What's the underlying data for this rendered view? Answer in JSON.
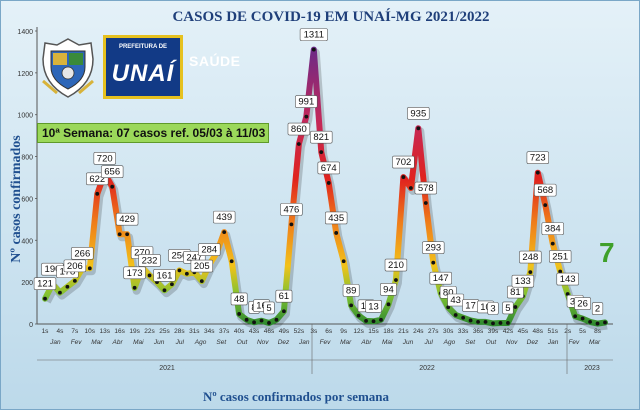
{
  "title": "CASOS DE COVID-19 EM UNAÍ-MG 2021/2022",
  "banner": "10ª Semana: 07 casos ref. 05/03 à 11/03",
  "logo": {
    "small_text": "PREFEITURA DE",
    "city": "UNAÍ",
    "department": "SAÚDE"
  },
  "last_value": "7",
  "chart_data": {
    "type": "line",
    "title": "CASOS DE COVID-19 EM UNAÍ-MG 2021/2022",
    "xlabel": "Nº casos confirmados por semana",
    "ylabel": "Nº casos confirmados",
    "ylim": [
      0,
      1400
    ],
    "yticks": [
      0,
      200,
      400,
      600,
      800,
      1000,
      1200,
      1400
    ],
    "grid": false,
    "values": [
      121,
      190,
      150,
      178,
      206,
      266,
      266,
      622,
      720,
      656,
      429,
      429,
      173,
      270,
      232,
      200,
      161,
      190,
      256,
      240,
      247,
      205,
      284,
      340,
      439,
      300,
      48,
      20,
      8,
      16,
      5,
      20,
      61,
      476,
      860,
      991,
      1311,
      821,
      674,
      435,
      300,
      89,
      40,
      15,
      13,
      20,
      94,
      210,
      702,
      650,
      935,
      578,
      293,
      147,
      80,
      43,
      30,
      17,
      10,
      10,
      3,
      5,
      5,
      81,
      133,
      248,
      723,
      568,
      384,
      251,
      143,
      37,
      26,
      10,
      2,
      7
    ],
    "data_labels": [
      {
        "i": 0,
        "text": "121"
      },
      {
        "i": 1,
        "text": "190"
      },
      {
        "i": 3,
        "text": "178"
      },
      {
        "i": 4,
        "text": "206"
      },
      {
        "i": 5,
        "text": "266"
      },
      {
        "i": 7,
        "text": "622"
      },
      {
        "i": 8,
        "text": "720"
      },
      {
        "i": 9,
        "text": "656"
      },
      {
        "i": 11,
        "text": "429"
      },
      {
        "i": 12,
        "text": "173"
      },
      {
        "i": 13,
        "text": "270"
      },
      {
        "i": 14,
        "text": "232"
      },
      {
        "i": 16,
        "text": "161"
      },
      {
        "i": 18,
        "text": "256"
      },
      {
        "i": 20,
        "text": "247"
      },
      {
        "i": 21,
        "text": "205"
      },
      {
        "i": 22,
        "text": "284"
      },
      {
        "i": 24,
        "text": "439"
      },
      {
        "i": 26,
        "text": "48"
      },
      {
        "i": 28,
        "text": "8"
      },
      {
        "i": 29,
        "text": "16"
      },
      {
        "i": 30,
        "text": "5"
      },
      {
        "i": 32,
        "text": "61"
      },
      {
        "i": 33,
        "text": "476"
      },
      {
        "i": 34,
        "text": "860"
      },
      {
        "i": 35,
        "text": "991"
      },
      {
        "i": 36,
        "text": "1311"
      },
      {
        "i": 37,
        "text": "821"
      },
      {
        "i": 38,
        "text": "674"
      },
      {
        "i": 39,
        "text": "435"
      },
      {
        "i": 41,
        "text": "89"
      },
      {
        "i": 43,
        "text": "15"
      },
      {
        "i": 44,
        "text": "13"
      },
      {
        "i": 46,
        "text": "94"
      },
      {
        "i": 47,
        "text": "210"
      },
      {
        "i": 48,
        "text": "702"
      },
      {
        "i": 50,
        "text": "935"
      },
      {
        "i": 51,
        "text": "578"
      },
      {
        "i": 52,
        "text": "293"
      },
      {
        "i": 53,
        "text": "147"
      },
      {
        "i": 54,
        "text": "80"
      },
      {
        "i": 55,
        "text": "43"
      },
      {
        "i": 57,
        "text": "17"
      },
      {
        "i": 59,
        "text": "10"
      },
      {
        "i": 60,
        "text": "3"
      },
      {
        "i": 62,
        "text": "5"
      },
      {
        "i": 63,
        "text": "81"
      },
      {
        "i": 64,
        "text": "133"
      },
      {
        "i": 65,
        "text": "248"
      },
      {
        "i": 66,
        "text": "723"
      },
      {
        "i": 67,
        "text": "568"
      },
      {
        "i": 68,
        "text": "384"
      },
      {
        "i": 69,
        "text": "251"
      },
      {
        "i": 70,
        "text": "143"
      },
      {
        "i": 71,
        "text": "37"
      },
      {
        "i": 72,
        "text": "26"
      },
      {
        "i": 74,
        "text": "2"
      }
    ],
    "week_ticks": [
      "1s",
      "4s",
      "7s",
      "10s",
      "13s",
      "16s",
      "19s",
      "22s",
      "25s",
      "28s",
      "31s",
      "34s",
      "37s",
      "40s",
      "43s",
      "46s",
      "49s",
      "52s",
      "3s",
      "6s",
      "9s",
      "12s",
      "15s",
      "18s",
      "21s",
      "24s",
      "27s",
      "30s",
      "33s",
      "36s",
      "39s",
      "42s",
      "45s",
      "48s",
      "51s",
      "2s",
      "5s",
      "8s"
    ],
    "months": [
      "Jan",
      "Fev",
      "Mar",
      "Abr",
      "Mai",
      "Jun",
      "Jul",
      "Ago",
      "Set",
      "Out",
      "Nov",
      "Dez",
      "Jan",
      "Fev",
      "Mar",
      "Abr",
      "Mai",
      "Jun",
      "Jul",
      "Ago",
      "Set",
      "Out",
      "Nov",
      "Dez",
      "Jan",
      "Fev",
      "Mar"
    ],
    "years": [
      "2021",
      "2022",
      "2023"
    ],
    "colors": {
      "low": "#2f8a2f",
      "mid": "#f2c21a",
      "high": "#e0231e",
      "peak": "#6b2a8f",
      "background": "#cfe6f2"
    }
  }
}
